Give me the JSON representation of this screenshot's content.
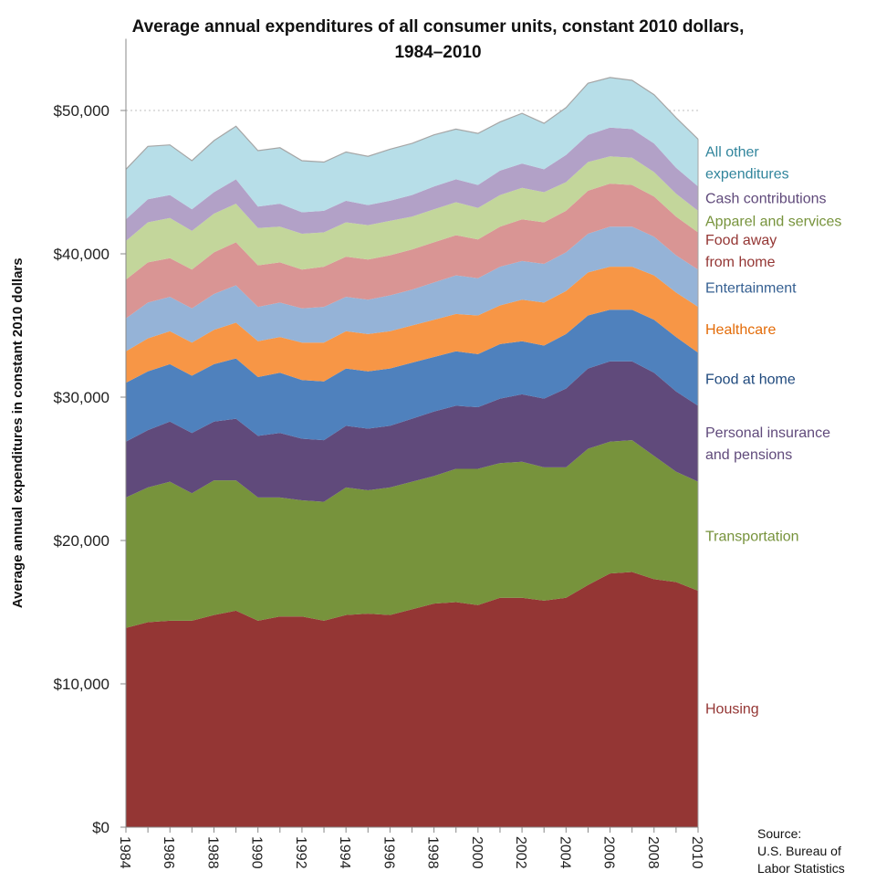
{
  "chart_data": {
    "type": "area",
    "stacked": true,
    "title_line1": "Average annual expenditures of all consumer units, constant 2010 dollars,",
    "title_line2": "1984–2010",
    "ylabel": "Average annual expenditures in constant 2010 dollars",
    "xlabel": "",
    "ylim": [
      0,
      55000
    ],
    "yticks": [
      {
        "value": 0,
        "label": "$0"
      },
      {
        "value": 10000,
        "label": "$10,000"
      },
      {
        "value": 20000,
        "label": "$20,000"
      },
      {
        "value": 30000,
        "label": "$30,000"
      },
      {
        "value": 40000,
        "label": "$40,000"
      },
      {
        "value": 50000,
        "label": "$50,000"
      }
    ],
    "x": [
      1984,
      1985,
      1986,
      1987,
      1988,
      1989,
      1990,
      1991,
      1992,
      1993,
      1994,
      1995,
      1996,
      1997,
      1998,
      1999,
      2000,
      2001,
      2002,
      2003,
      2004,
      2005,
      2006,
      2007,
      2008,
      2009,
      2010
    ],
    "xtick_labels": [
      "1984",
      "1986",
      "1988",
      "1990",
      "1992",
      "1994",
      "1996",
      "1998",
      "2000",
      "2002",
      "2004",
      "2006",
      "2008",
      "2010"
    ],
    "grid_lines": [
      50000
    ],
    "legend_position": "right, labels beside each band",
    "series": [
      {
        "name": "Housing",
        "label_lines": [
          "Housing"
        ],
        "color": "#943634",
        "label_color": "#943634",
        "values": [
          13900,
          14300,
          14400,
          14400,
          14800,
          15100,
          14400,
          14700,
          14700,
          14400,
          14800,
          14900,
          14800,
          15200,
          15600,
          15700,
          15500,
          16000,
          16000,
          15800,
          16000,
          16900,
          17700,
          17800,
          17300,
          17100,
          16500
        ]
      },
      {
        "name": "Transportation",
        "label_lines": [
          "Transportation"
        ],
        "color": "#77933C",
        "label_color": "#77933C",
        "values": [
          9100,
          9400,
          9700,
          8900,
          9400,
          9100,
          8600,
          8300,
          8100,
          8300,
          8900,
          8600,
          8900,
          8900,
          8900,
          9300,
          9500,
          9400,
          9500,
          9300,
          9100,
          9500,
          9200,
          9200,
          8600,
          7700,
          7600
        ]
      },
      {
        "name": "Personal insurance and pensions",
        "label_lines": [
          "Personal insurance",
          "and pensions"
        ],
        "color": "#604A7B",
        "label_color": "#604A7B",
        "values": [
          3900,
          4000,
          4200,
          4200,
          4100,
          4300,
          4300,
          4500,
          4300,
          4300,
          4300,
          4300,
          4300,
          4400,
          4500,
          4400,
          4300,
          4500,
          4700,
          4800,
          5500,
          5600,
          5600,
          5500,
          5800,
          5600,
          5300
        ]
      },
      {
        "name": "Food at home",
        "label_lines": [
          "Food at home"
        ],
        "color": "#4F81BD",
        "label_color": "#1F497D",
        "values": [
          4100,
          4100,
          4000,
          4000,
          4000,
          4200,
          4100,
          4200,
          4100,
          4100,
          4000,
          4000,
          4000,
          3900,
          3800,
          3800,
          3700,
          3800,
          3700,
          3700,
          3800,
          3700,
          3600,
          3600,
          3700,
          3800,
          3700
        ]
      },
      {
        "name": "Healthcare",
        "label_lines": [
          "Healthcare"
        ],
        "color": "#F79646",
        "label_color": "#E36C09",
        "values": [
          2200,
          2300,
          2300,
          2300,
          2400,
          2500,
          2500,
          2500,
          2600,
          2700,
          2600,
          2600,
          2600,
          2600,
          2600,
          2600,
          2700,
          2700,
          2900,
          3000,
          3000,
          3000,
          3000,
          3000,
          3100,
          3100,
          3200
        ]
      },
      {
        "name": "Entertainment",
        "label_lines": [
          "Entertainment"
        ],
        "color": "#95B3D7",
        "label_color": "#366092",
        "values": [
          2300,
          2500,
          2400,
          2400,
          2500,
          2600,
          2400,
          2400,
          2400,
          2500,
          2400,
          2400,
          2500,
          2500,
          2600,
          2700,
          2600,
          2700,
          2700,
          2700,
          2700,
          2700,
          2800,
          2800,
          2700,
          2600,
          2600
        ]
      },
      {
        "name": "Food away from home",
        "label_lines": [
          "Food away",
          "from home"
        ],
        "color": "#D99594",
        "label_color": "#943634",
        "values": [
          2700,
          2800,
          2700,
          2700,
          2900,
          3000,
          2900,
          2800,
          2700,
          2800,
          2800,
          2800,
          2800,
          2800,
          2800,
          2800,
          2700,
          2800,
          2900,
          2900,
          2900,
          3000,
          3000,
          2900,
          2800,
          2700,
          2600
        ]
      },
      {
        "name": "Apparel and services",
        "label_lines": [
          "Apparel and services"
        ],
        "color": "#C3D69B",
        "label_color": "#77933C",
        "values": [
          2700,
          2800,
          2800,
          2700,
          2700,
          2700,
          2600,
          2500,
          2500,
          2400,
          2400,
          2400,
          2400,
          2300,
          2300,
          2300,
          2200,
          2200,
          2200,
          2100,
          2000,
          2000,
          1900,
          1900,
          1700,
          1600,
          1500
        ]
      },
      {
        "name": "Cash contributions",
        "label_lines": [
          "Cash contributions"
        ],
        "color": "#B2A1C7",
        "label_color": "#604A7B",
        "values": [
          1500,
          1600,
          1600,
          1500,
          1500,
          1700,
          1500,
          1600,
          1500,
          1500,
          1500,
          1400,
          1400,
          1500,
          1600,
          1600,
          1600,
          1700,
          1700,
          1600,
          1900,
          1900,
          2000,
          2000,
          2000,
          1800,
          1700
        ]
      },
      {
        "name": "All other expenditures",
        "label_lines": [
          "All other",
          "expenditures"
        ],
        "color": "#B7DEE8",
        "label_color": "#31859C",
        "values": [
          3500,
          3700,
          3500,
          3400,
          3600,
          3700,
          3900,
          3900,
          3600,
          3400,
          3400,
          3400,
          3600,
          3600,
          3600,
          3500,
          3600,
          3400,
          3500,
          3200,
          3300,
          3600,
          3500,
          3400,
          3400,
          3500,
          3300
        ]
      }
    ]
  },
  "source": {
    "line1": "Source:",
    "line2": "U.S. Bureau of",
    "line3": "Labor Statistics"
  }
}
